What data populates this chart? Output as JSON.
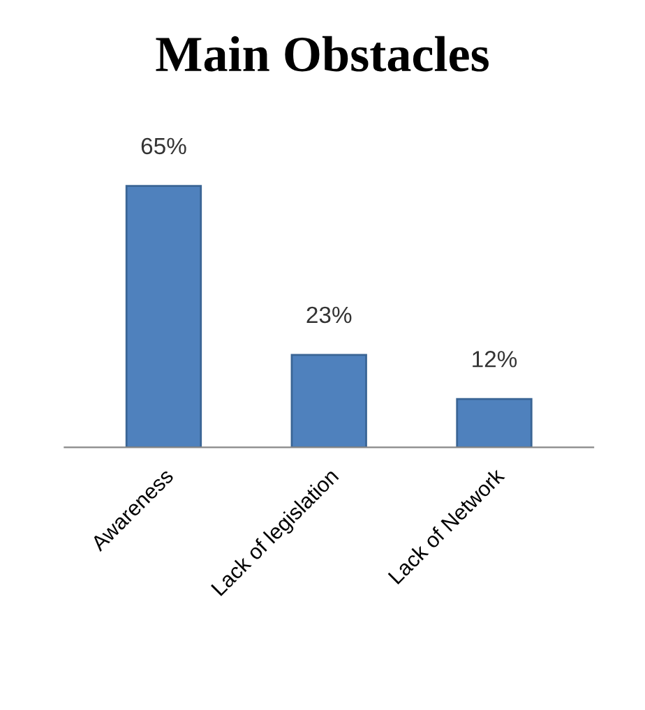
{
  "chart_data": {
    "type": "bar",
    "title": "Main Obstacles",
    "categories": [
      "Awareness",
      "Lack of legislation",
      "Lack of Network"
    ],
    "values": [
      65,
      23,
      12
    ],
    "value_labels": [
      "65%",
      "23%",
      "12%"
    ],
    "color": "#4f81bd"
  }
}
